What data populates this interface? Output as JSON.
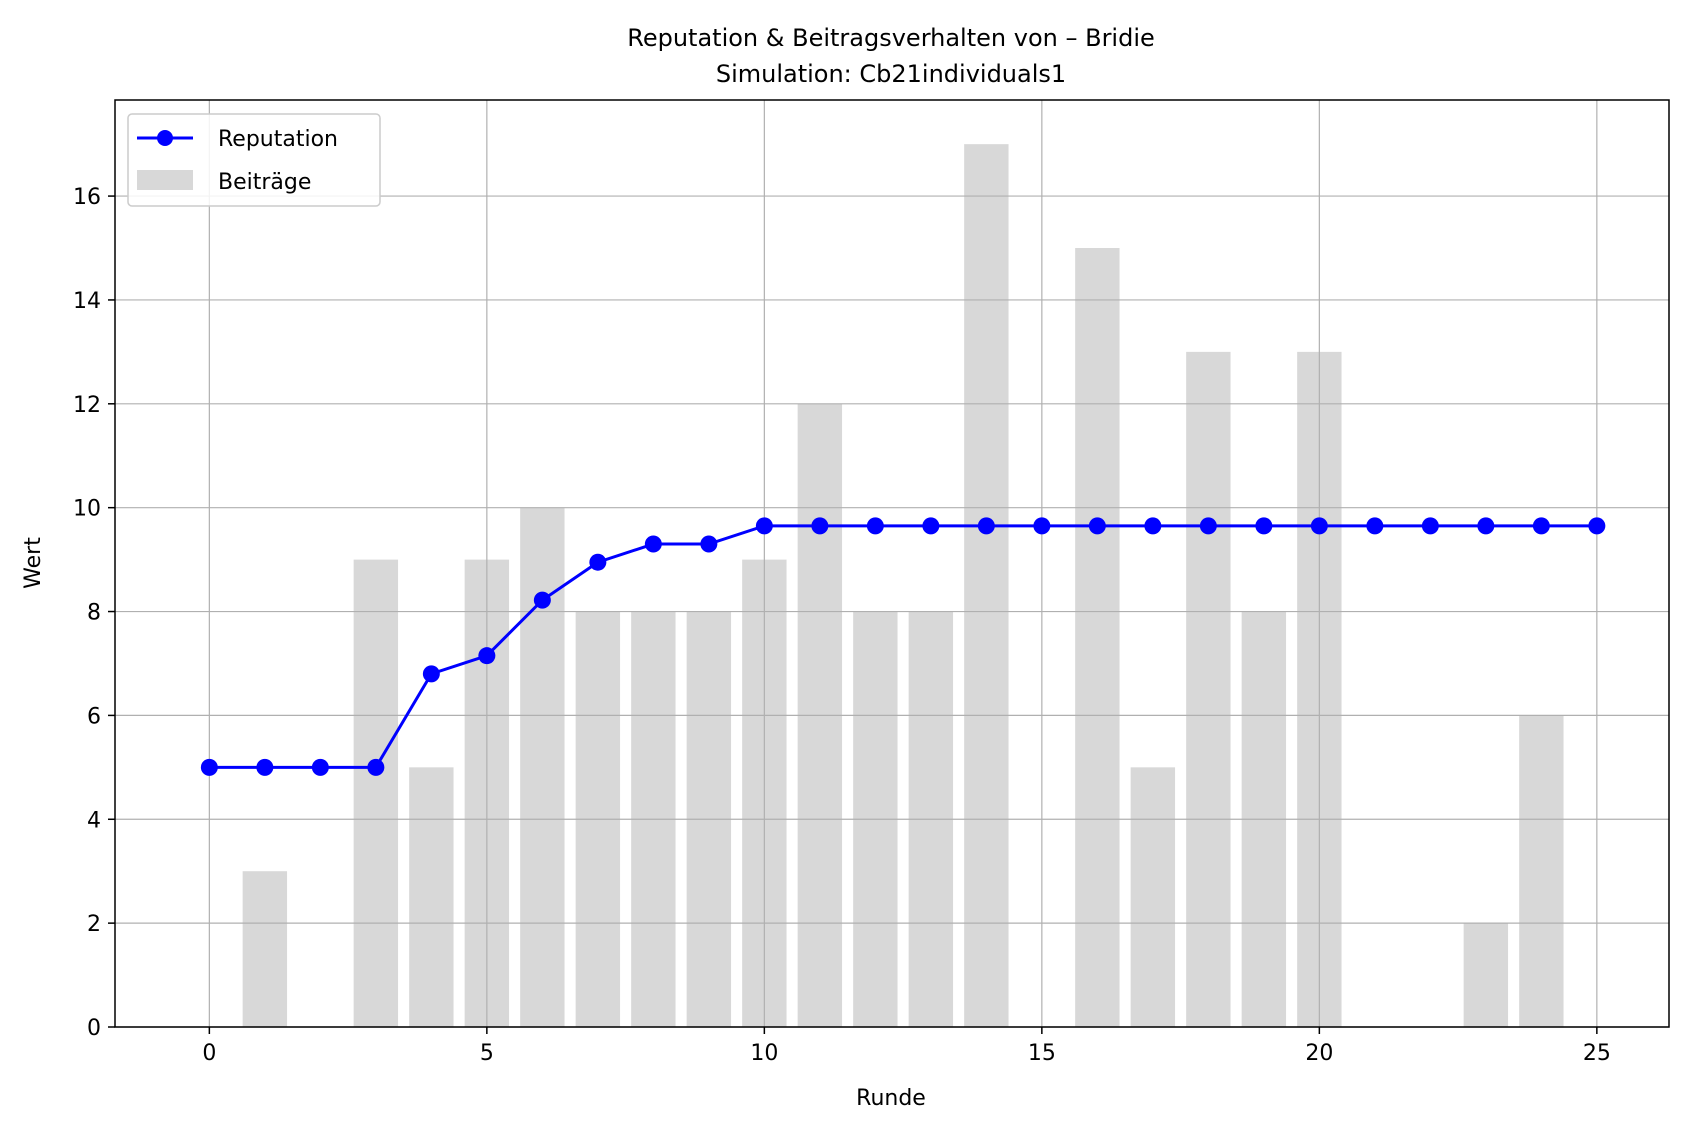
{
  "chart_data": {
    "type": "bar+line",
    "title": "Reputation & Beitragsverhalten von – Bridie",
    "subtitle": "Simulation: Cb21individuals1",
    "xlabel": "Runde",
    "ylabel": "Wert",
    "xlim": [
      -1.7,
      26.3
    ],
    "ylim": [
      0,
      17.85
    ],
    "xticks": [
      0,
      5,
      10,
      15,
      20,
      25
    ],
    "yticks": [
      0,
      2,
      4,
      6,
      8,
      10,
      12,
      14,
      16
    ],
    "grid": true,
    "legend_position": "top-left",
    "x": [
      0,
      1,
      2,
      3,
      4,
      5,
      6,
      7,
      8,
      9,
      10,
      11,
      12,
      13,
      14,
      15,
      16,
      17,
      18,
      19,
      20,
      21,
      22,
      23,
      24,
      25
    ],
    "series": [
      {
        "name": "Reputation",
        "kind": "line",
        "color": "#0000ff",
        "marker": "circle",
        "values": [
          5,
          5,
          5,
          5,
          6.8,
          7.15,
          8.22,
          8.95,
          9.3,
          9.3,
          9.65,
          9.65,
          9.65,
          9.65,
          9.65,
          9.65,
          9.65,
          9.65,
          9.65,
          9.65,
          9.65,
          9.65,
          9.65,
          9.65,
          9.65,
          9.65
        ]
      },
      {
        "name": "Beiträge",
        "kind": "bar",
        "color": "#d8d8d8",
        "values": [
          0,
          3,
          0,
          9,
          5,
          9,
          10,
          8,
          8,
          8,
          9,
          12,
          8,
          8,
          17,
          0,
          15,
          5,
          13,
          8,
          13,
          0,
          0,
          2,
          6,
          0
        ]
      }
    ]
  }
}
